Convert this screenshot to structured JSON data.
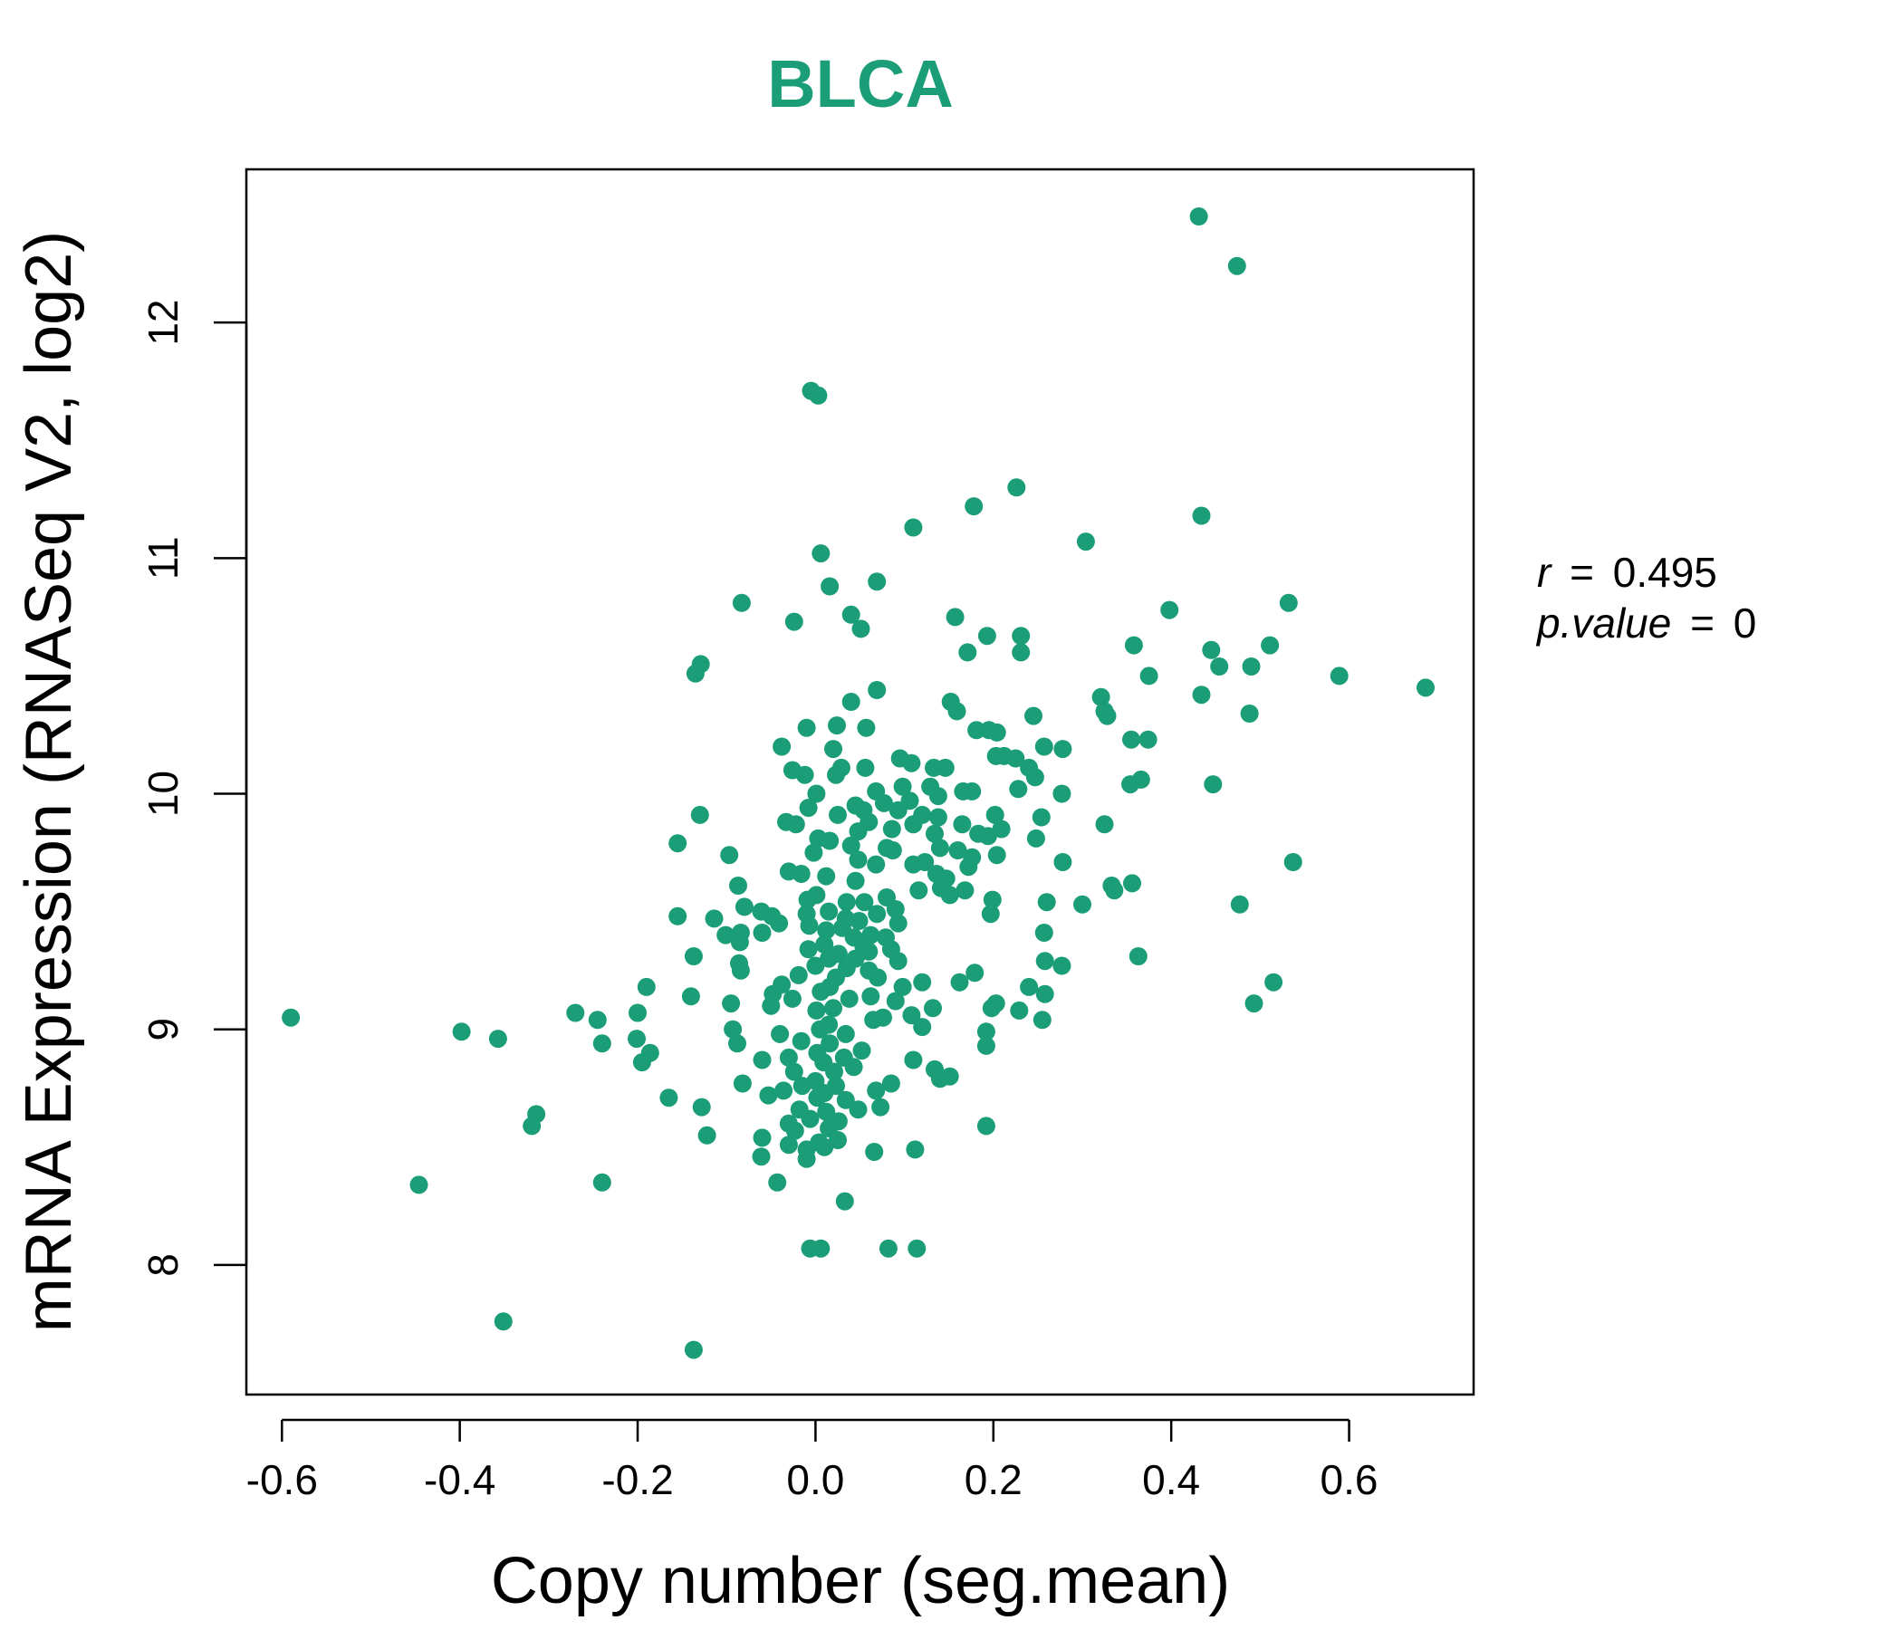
{
  "chart_data": {
    "type": "scatter",
    "title": "BLCA",
    "xlabel": "Copy number (seg.mean)",
    "ylabel": "mRNA Expression (RNASeq V2, log2)",
    "xlim": [
      -0.64,
      0.74
    ],
    "ylim": [
      7.45,
      12.65
    ],
    "x_ticks": [
      -0.6,
      -0.4,
      -0.2,
      0.0,
      0.2,
      0.4,
      0.6
    ],
    "x_tick_labels": [
      "-0.6",
      "-0.4",
      "-0.2",
      "0.0",
      "0.2",
      "0.4",
      "0.6"
    ],
    "y_ticks": [
      8,
      9,
      10,
      11,
      12
    ],
    "y_tick_labels": [
      "8",
      "9",
      "10",
      "11",
      "12"
    ],
    "grid": false,
    "point_color": "#1b9e77",
    "stats": {
      "r_label": "r",
      "r_value": "0.495",
      "p_label": "p.value",
      "p_value": "0"
    },
    "points": [
      [
        0.431,
        12.45
      ],
      [
        0.474,
        12.24
      ],
      [
        -0.005,
        11.71
      ],
      [
        0.003,
        11.69
      ],
      [
        0.226,
        11.3
      ],
      [
        0.178,
        11.22
      ],
      [
        0.434,
        11.18
      ],
      [
        0.11,
        11.13
      ],
      [
        0.304,
        11.07
      ],
      [
        0.006,
        11.02
      ],
      [
        0.069,
        10.9
      ],
      [
        0.016,
        10.88
      ],
      [
        -0.083,
        10.81
      ],
      [
        0.532,
        10.81
      ],
      [
        0.398,
        10.78
      ],
      [
        0.04,
        10.76
      ],
      [
        0.157,
        10.75
      ],
      [
        -0.024,
        10.73
      ],
      [
        0.051,
        10.7
      ],
      [
        0.193,
        10.67
      ],
      [
        0.231,
        10.67
      ],
      [
        0.358,
        10.63
      ],
      [
        0.511,
        10.63
      ],
      [
        0.445,
        10.61
      ],
      [
        0.171,
        10.6
      ],
      [
        0.231,
        10.6
      ],
      [
        0.454,
        10.54
      ],
      [
        0.49,
        10.54
      ],
      [
        -0.129,
        10.55
      ],
      [
        -0.135,
        10.51
      ],
      [
        0.375,
        10.5
      ],
      [
        0.589,
        10.5
      ],
      [
        0.686,
        10.45
      ],
      [
        0.069,
        10.44
      ],
      [
        0.434,
        10.42
      ],
      [
        0.321,
        10.41
      ],
      [
        0.152,
        10.39
      ],
      [
        0.04,
        10.39
      ],
      [
        0.325,
        10.35
      ],
      [
        0.328,
        10.33
      ],
      [
        0.488,
        10.34
      ],
      [
        0.159,
        10.35
      ],
      [
        0.245,
        10.33
      ],
      [
        0.024,
        10.29
      ],
      [
        -0.01,
        10.28
      ],
      [
        0.057,
        10.28
      ],
      [
        0.181,
        10.27
      ],
      [
        0.195,
        10.27
      ],
      [
        0.204,
        10.26
      ],
      [
        0.355,
        10.23
      ],
      [
        0.374,
        10.23
      ],
      [
        -0.038,
        10.2
      ],
      [
        0.02,
        10.19
      ],
      [
        0.257,
        10.2
      ],
      [
        0.278,
        10.19
      ],
      [
        0.203,
        10.16
      ],
      [
        0.212,
        10.16
      ],
      [
        0.225,
        10.15
      ],
      [
        0.095,
        10.15
      ],
      [
        0.108,
        10.13
      ],
      [
        0.133,
        10.11
      ],
      [
        0.146,
        10.11
      ],
      [
        0.24,
        10.11
      ],
      [
        0.029,
        10.11
      ],
      [
        0.056,
        10.11
      ],
      [
        -0.026,
        10.1
      ],
      [
        -0.012,
        10.08
      ],
      [
        0.023,
        10.08
      ],
      [
        0.247,
        10.07
      ],
      [
        0.366,
        10.06
      ],
      [
        0.354,
        10.04
      ],
      [
        0.447,
        10.04
      ],
      [
        0.098,
        10.03
      ],
      [
        0.129,
        10.03
      ],
      [
        0.228,
        10.02
      ],
      [
        0.176,
        10.01
      ],
      [
        0.166,
        10.01
      ],
      [
        0.068,
        10.01
      ],
      [
        0.001,
        10.0
      ],
      [
        0.277,
        10.0
      ],
      [
        0.138,
        9.99
      ],
      [
        0.106,
        9.97
      ],
      [
        0.077,
        9.96
      ],
      [
        0.045,
        9.95
      ],
      [
        0.054,
        9.93
      ],
      [
        -0.008,
        9.94
      ],
      [
        0.093,
        9.93
      ],
      [
        0.202,
        9.91
      ],
      [
        0.254,
        9.9
      ],
      [
        0.12,
        9.91
      ],
      [
        0.025,
        9.91
      ],
      [
        0.138,
        9.9
      ],
      [
        -0.13,
        9.91
      ],
      [
        -0.033,
        9.88
      ],
      [
        0.06,
        9.88
      ],
      [
        -0.022,
        9.87
      ],
      [
        0.11,
        9.87
      ],
      [
        0.165,
        9.87
      ],
      [
        0.325,
        9.87
      ],
      [
        0.209,
        9.85
      ],
      [
        0.086,
        9.85
      ],
      [
        0.048,
        9.84
      ],
      [
        0.134,
        9.83
      ],
      [
        0.183,
        9.83
      ],
      [
        0.003,
        9.81
      ],
      [
        0.016,
        9.8
      ],
      [
        0.194,
        9.82
      ],
      [
        0.248,
        9.81
      ],
      [
        -0.155,
        9.79
      ],
      [
        0.04,
        9.78
      ],
      [
        0.08,
        9.77
      ],
      [
        0.14,
        9.77
      ],
      [
        0.16,
        9.76
      ],
      [
        -0.002,
        9.75
      ],
      [
        0.087,
        9.76
      ],
      [
        -0.097,
        9.74
      ],
      [
        0.204,
        9.74
      ],
      [
        0.176,
        9.73
      ],
      [
        0.048,
        9.72
      ],
      [
        0.123,
        9.71
      ],
      [
        0.278,
        9.71
      ],
      [
        0.537,
        9.71
      ],
      [
        0.068,
        9.7
      ],
      [
        0.11,
        9.7
      ],
      [
        0.172,
        9.69
      ],
      [
        -0.016,
        9.66
      ],
      [
        0.012,
        9.65
      ],
      [
        -0.03,
        9.67
      ],
      [
        0.136,
        9.66
      ],
      [
        0.147,
        9.64
      ],
      [
        0.045,
        9.63
      ],
      [
        0.356,
        9.62
      ],
      [
        0.333,
        9.61
      ],
      [
        -0.087,
        9.61
      ],
      [
        0.141,
        9.6
      ],
      [
        0.336,
        9.59
      ],
      [
        0.168,
        9.59
      ],
      [
        0.116,
        9.59
      ],
      [
        0.001,
        9.57
      ],
      [
        0.08,
        9.56
      ],
      [
        0.151,
        9.57
      ],
      [
        -0.009,
        9.55
      ],
      [
        0.199,
        9.55
      ],
      [
        0.035,
        9.54
      ],
      [
        0.055,
        9.54
      ],
      [
        0.26,
        9.54
      ],
      [
        0.477,
        9.53
      ],
      [
        0.3,
        9.53
      ],
      [
        -0.08,
        9.52
      ],
      [
        0.09,
        9.51
      ],
      [
        -0.061,
        9.5
      ],
      [
        0.015,
        9.5
      ],
      [
        -0.01,
        9.49
      ],
      [
        0.069,
        9.49
      ],
      [
        0.197,
        9.49
      ],
      [
        -0.049,
        9.48
      ],
      [
        -0.155,
        9.48
      ],
      [
        -0.114,
        9.47
      ],
      [
        0.034,
        9.47
      ],
      [
        0.049,
        9.46
      ],
      [
        -0.041,
        9.45
      ],
      [
        0.093,
        9.45
      ],
      [
        -0.007,
        9.44
      ],
      [
        0.03,
        9.43
      ],
      [
        0.012,
        9.42
      ],
      [
        -0.06,
        9.41
      ],
      [
        -0.084,
        9.41
      ],
      [
        0.257,
        9.41
      ],
      [
        -0.101,
        9.4
      ],
      [
        0.062,
        9.4
      ],
      [
        0.043,
        9.39
      ],
      [
        0.079,
        9.39
      ],
      [
        -0.085,
        9.37
      ],
      [
        0.01,
        9.36
      ],
      [
        0.054,
        9.35
      ],
      [
        -0.008,
        9.34
      ],
      [
        0.085,
        9.34
      ],
      [
        0.06,
        9.33
      ],
      [
        0.026,
        9.32
      ],
      [
        -0.137,
        9.31
      ],
      [
        0.363,
        9.31
      ],
      [
        0.015,
        9.3
      ],
      [
        0.045,
        9.3
      ],
      [
        0.093,
        9.29
      ],
      [
        -0.086,
        9.28
      ],
      [
        0.258,
        9.29
      ],
      [
        0.277,
        9.27
      ],
      [
        0.0,
        9.27
      ],
      [
        0.035,
        9.26
      ],
      [
        -0.084,
        9.25
      ],
      [
        0.06,
        9.25
      ],
      [
        0.179,
        9.24
      ],
      [
        -0.019,
        9.23
      ],
      [
        0.023,
        9.22
      ],
      [
        0.07,
        9.22
      ],
      [
        0.12,
        9.2
      ],
      [
        0.162,
        9.2
      ],
      [
        -0.038,
        9.19
      ],
      [
        0.515,
        9.2
      ],
      [
        0.016,
        9.18
      ],
      [
        0.098,
        9.18
      ],
      [
        0.24,
        9.18
      ],
      [
        -0.19,
        9.18
      ],
      [
        0.006,
        9.16
      ],
      [
        -0.048,
        9.15
      ],
      [
        -0.14,
        9.14
      ],
      [
        0.062,
        9.14
      ],
      [
        0.258,
        9.15
      ],
      [
        -0.026,
        9.13
      ],
      [
        0.038,
        9.13
      ],
      [
        0.09,
        9.12
      ],
      [
        0.203,
        9.11
      ],
      [
        -0.095,
        9.11
      ],
      [
        0.493,
        9.11
      ],
      [
        -0.05,
        9.1
      ],
      [
        0.02,
        9.09
      ],
      [
        0.132,
        9.09
      ],
      [
        0.198,
        9.09
      ],
      [
        0.001,
        9.08
      ],
      [
        -0.2,
        9.07
      ],
      [
        0.229,
        9.08
      ],
      [
        -0.27,
        9.07
      ],
      [
        0.108,
        9.06
      ],
      [
        0.076,
        9.05
      ],
      [
        0.065,
        9.04
      ],
      [
        -0.245,
        9.04
      ],
      [
        0.255,
        9.04
      ],
      [
        0.015,
        9.02
      ],
      [
        0.12,
        9.01
      ],
      [
        -0.093,
        9.0
      ],
      [
        0.005,
        9.0
      ],
      [
        -0.398,
        8.99
      ],
      [
        0.192,
        8.99
      ],
      [
        0.034,
        8.98
      ],
      [
        -0.04,
        8.98
      ],
      [
        -0.357,
        8.96
      ],
      [
        -0.201,
        8.96
      ],
      [
        -0.016,
        8.95
      ],
      [
        0.016,
        8.94
      ],
      [
        -0.24,
        8.94
      ],
      [
        -0.088,
        8.94
      ],
      [
        0.192,
        8.93
      ],
      [
        0.052,
        8.91
      ],
      [
        0.002,
        8.9
      ],
      [
        -0.186,
        8.9
      ],
      [
        -0.03,
        8.88
      ],
      [
        0.032,
        8.88
      ],
      [
        -0.06,
        8.87
      ],
      [
        0.11,
        8.87
      ],
      [
        -0.195,
        8.86
      ],
      [
        0.009,
        8.86
      ],
      [
        0.043,
        8.84
      ],
      [
        0.134,
        8.83
      ],
      [
        0.021,
        8.82
      ],
      [
        -0.024,
        8.82
      ],
      [
        0.151,
        8.8
      ],
      [
        0.14,
        8.79
      ],
      [
        0.0,
        8.78
      ],
      [
        0.085,
        8.77
      ],
      [
        -0.082,
        8.77
      ],
      [
        0.023,
        8.76
      ],
      [
        -0.015,
        8.76
      ],
      [
        -0.036,
        8.74
      ],
      [
        0.068,
        8.74
      ],
      [
        0.01,
        8.73
      ],
      [
        -0.053,
        8.72
      ],
      [
        -0.165,
        8.71
      ],
      [
        0.002,
        8.71
      ],
      [
        0.034,
        8.7
      ],
      [
        0.073,
        8.67
      ],
      [
        0.048,
        8.66
      ],
      [
        -0.128,
        8.67
      ],
      [
        -0.018,
        8.66
      ],
      [
        0.012,
        8.65
      ],
      [
        -0.314,
        8.64
      ],
      [
        -0.006,
        8.62
      ],
      [
        0.026,
        8.61
      ],
      [
        -0.03,
        8.6
      ],
      [
        -0.319,
        8.59
      ],
      [
        0.192,
        8.59
      ],
      [
        0.015,
        8.58
      ],
      [
        -0.023,
        8.57
      ],
      [
        -0.122,
        8.55
      ],
      [
        -0.06,
        8.54
      ],
      [
        0.025,
        8.53
      ],
      [
        0.004,
        8.52
      ],
      [
        -0.03,
        8.51
      ],
      [
        0.01,
        8.5
      ],
      [
        -0.01,
        8.49
      ],
      [
        0.066,
        8.48
      ],
      [
        0.112,
        8.49
      ],
      [
        -0.061,
        8.46
      ],
      [
        -0.01,
        8.45
      ],
      [
        -0.446,
        8.34
      ],
      [
        -0.24,
        8.35
      ],
      [
        -0.043,
        8.35
      ],
      [
        0.033,
        8.27
      ],
      [
        -0.006,
        8.07
      ],
      [
        0.006,
        8.07
      ],
      [
        0.082,
        8.07
      ],
      [
        0.114,
        8.07
      ],
      [
        -0.351,
        7.76
      ],
      [
        -0.137,
        7.64
      ],
      [
        -0.59,
        9.05
      ]
    ]
  }
}
